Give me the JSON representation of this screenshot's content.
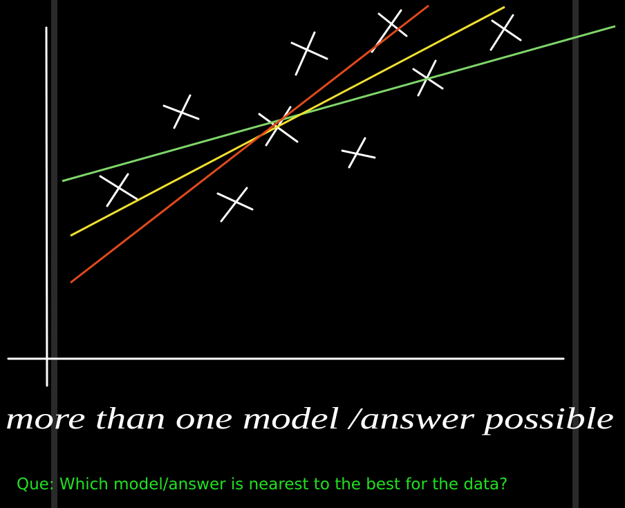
{
  "annotation": "more than one model /answer possible",
  "question": "Que: Which model/answer is nearest to the best for the data?"
}
